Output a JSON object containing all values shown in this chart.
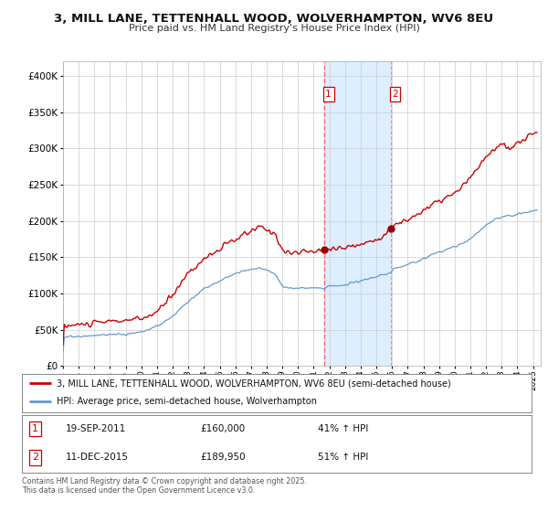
{
  "title": "3, MILL LANE, TETTENHALL WOOD, WOLVERHAMPTON, WV6 8EU",
  "subtitle": "Price paid vs. HM Land Registry's House Price Index (HPI)",
  "sale1_date": "19-SEP-2011",
  "sale1_price": 160000,
  "sale1_hpi_pct": "41% ↑ HPI",
  "sale2_date": "11-DEC-2015",
  "sale2_price": 189950,
  "sale2_hpi_pct": "51% ↑ HPI",
  "legend_line1": "3, MILL LANE, TETTENHALL WOOD, WOLVERHAMPTON, WV6 8EU (semi-detached house)",
  "legend_line2": "HPI: Average price, semi-detached house, Wolverhampton",
  "footer": "Contains HM Land Registry data © Crown copyright and database right 2025.\nThis data is licensed under the Open Government Licence v3.0.",
  "red_color": "#cc0000",
  "blue_color": "#6699cc",
  "marker_color": "#990000",
  "shading_color": "#ddeeff",
  "vline_color": "#ff6666",
  "vline2_color": "#aaaacc",
  "background_color": "#ffffff",
  "grid_color": "#cccccc",
  "ylim": [
    0,
    420000
  ],
  "yticks": [
    0,
    50000,
    100000,
    150000,
    200000,
    250000,
    300000,
    350000,
    400000
  ],
  "sale1_x": 2011.667,
  "sale2_x": 2015.917,
  "xlim_left": 1995.0,
  "xlim_right": 2025.5
}
